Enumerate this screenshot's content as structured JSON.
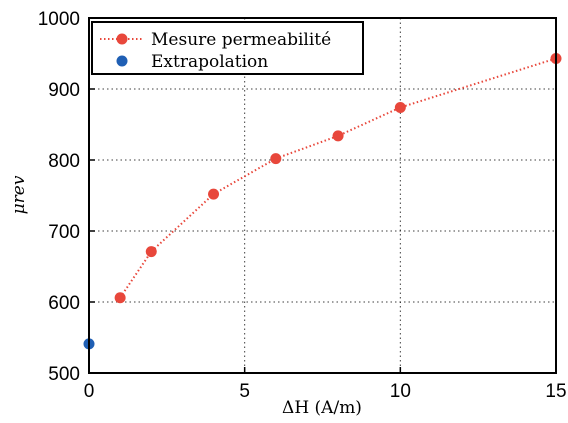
{
  "chart_data": {
    "type": "scatter",
    "xlabel": "ΔH (A/m)",
    "ylabel": "μrev",
    "xlim": [
      0,
      15
    ],
    "ylim": [
      500,
      1000
    ],
    "x_ticks": [
      "0",
      "5",
      "10",
      "15"
    ],
    "y_ticks": [
      "500",
      "600",
      "700",
      "800",
      "900",
      "1000"
    ],
    "grid": true,
    "legend_position": "top-left",
    "series": [
      {
        "name": "Mesure permeabilité",
        "color": "#e8473b",
        "line_style": "dotted",
        "x": [
          1,
          2,
          4,
          6,
          8,
          10,
          15
        ],
        "y": [
          606,
          671,
          752,
          802,
          834,
          874,
          943
        ]
      },
      {
        "name": "Extrapolation",
        "color": "#1f5fb4",
        "line_style": "none",
        "x": [
          0
        ],
        "y": [
          541
        ]
      }
    ]
  }
}
